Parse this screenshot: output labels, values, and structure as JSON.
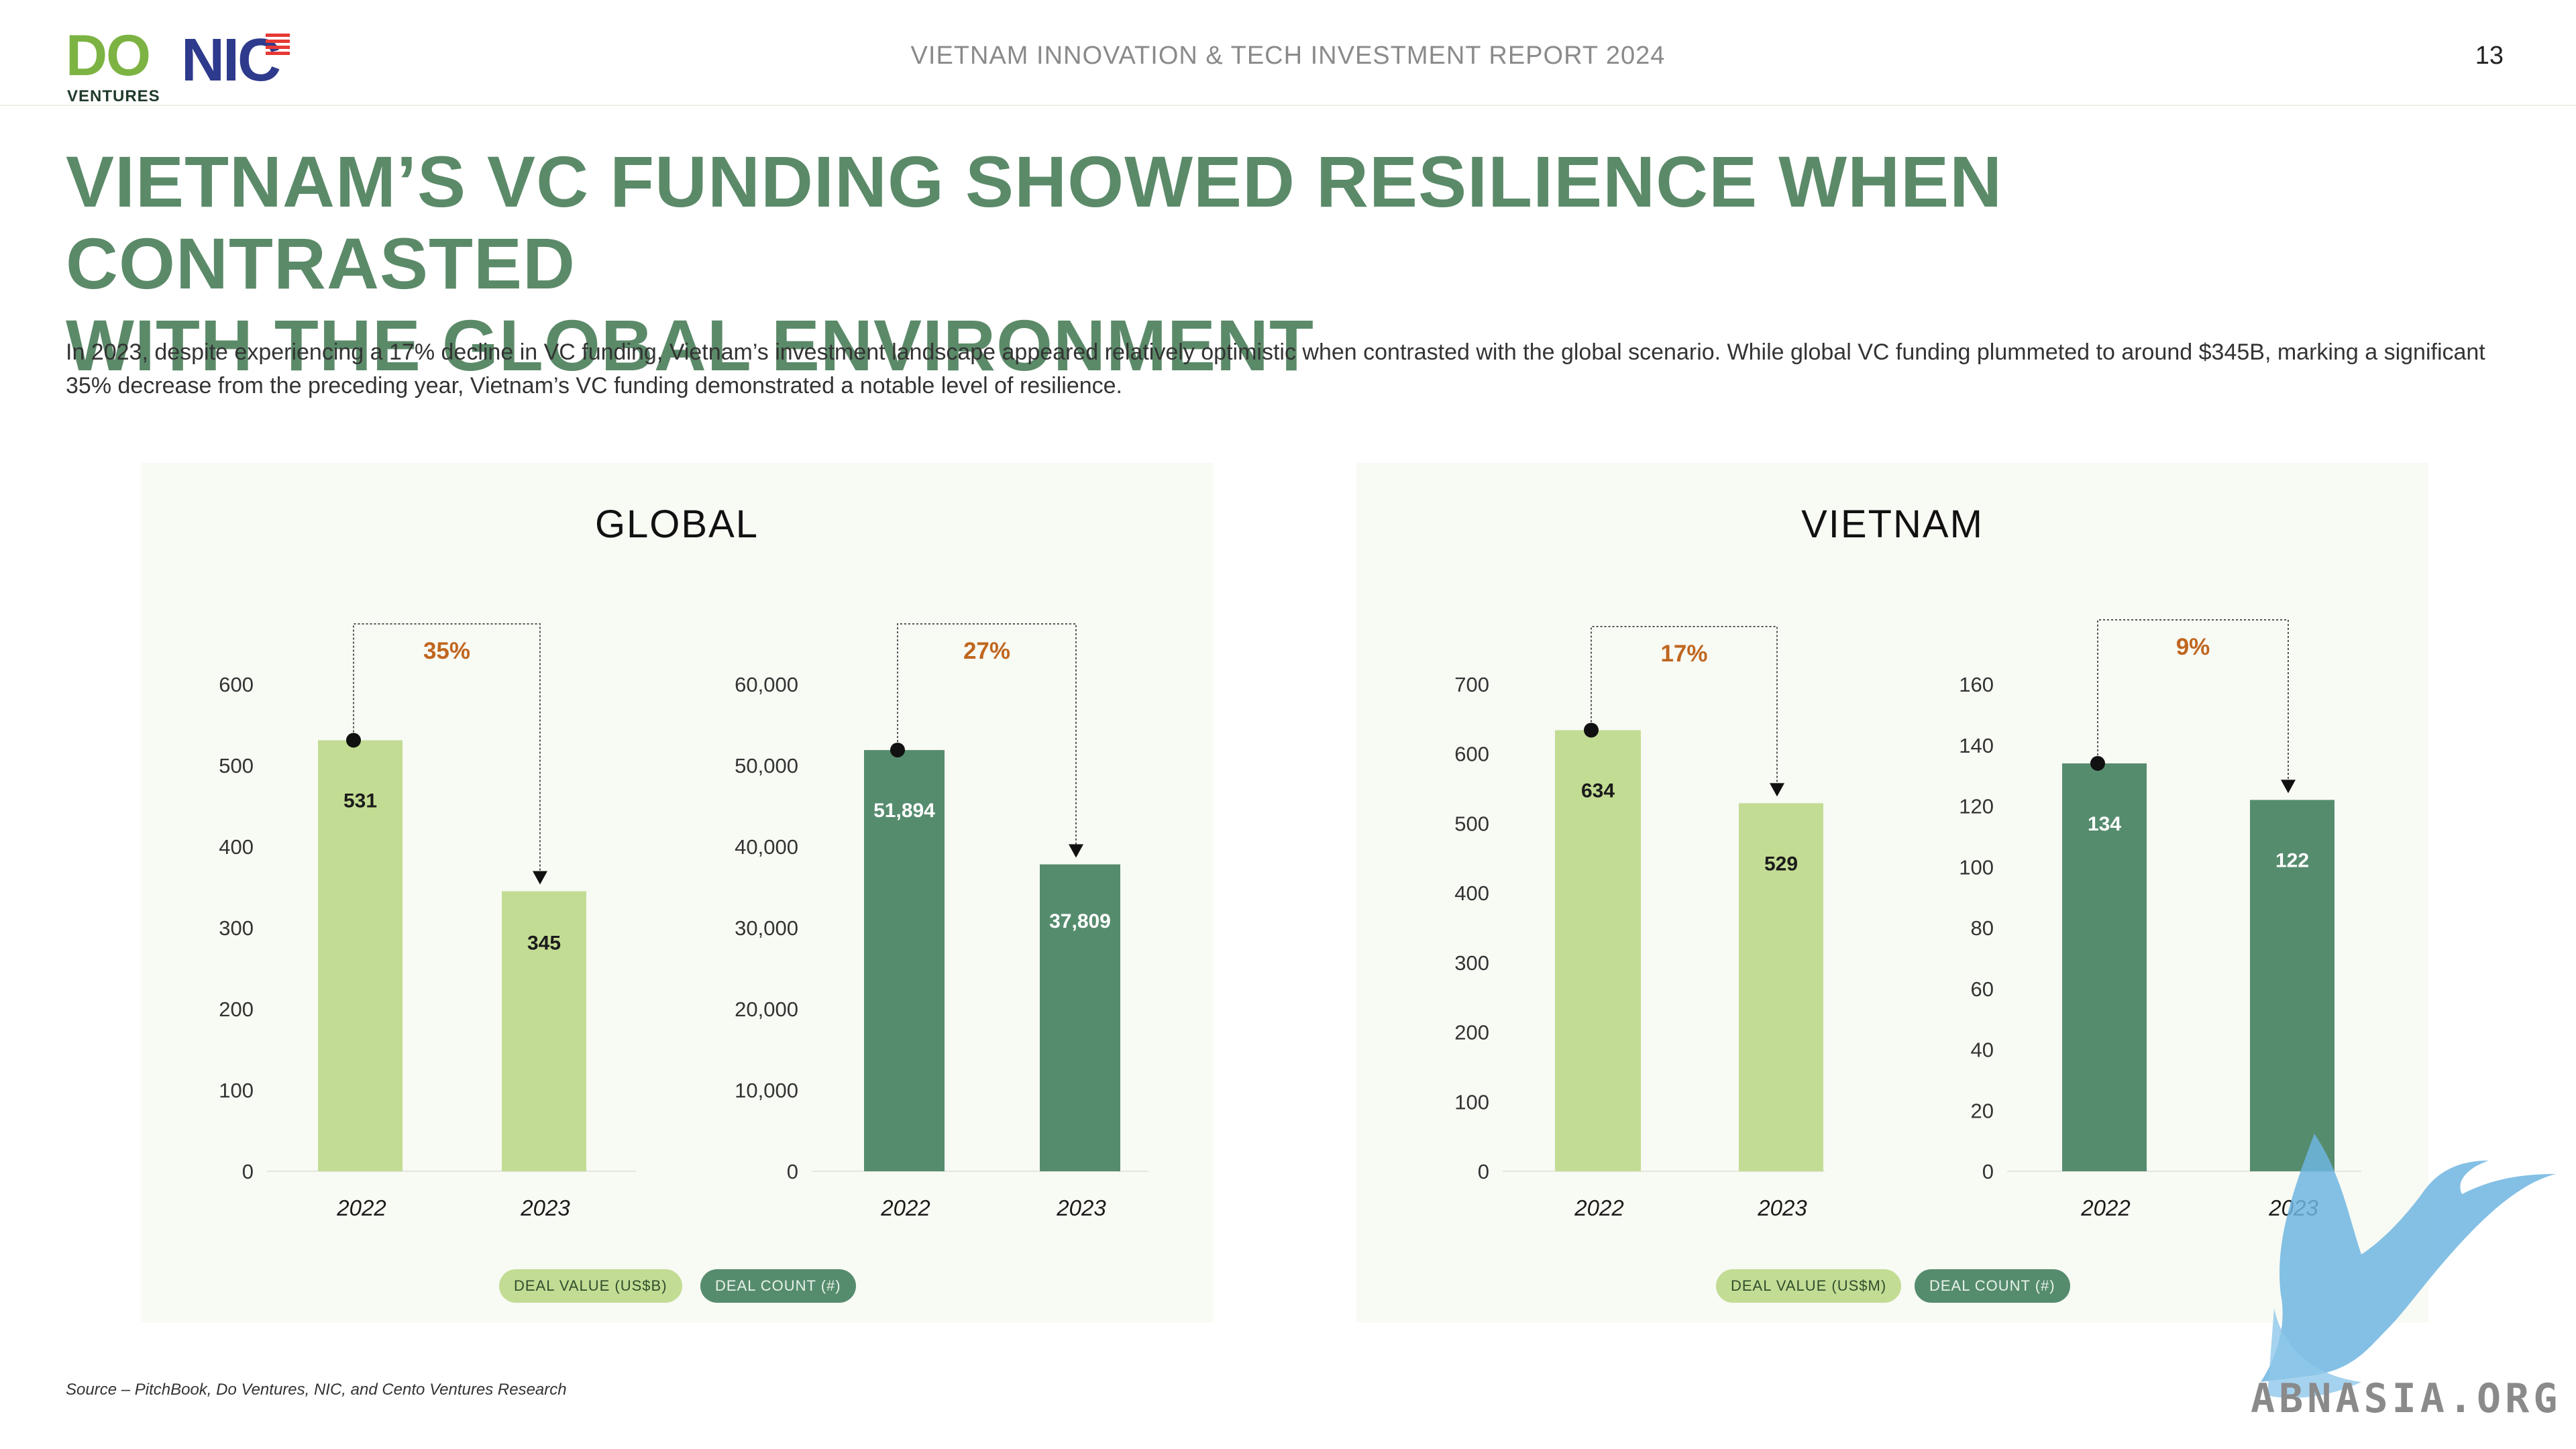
{
  "header": {
    "logo_do": "DO",
    "logo_do_sub": "VENTURES",
    "logo_nic": "NIC",
    "report_title": "VIETNAM INNOVATION & TECH INVESTMENT REPORT 2024",
    "page_number": "13"
  },
  "headline": {
    "line1": "VIETNAM’S VC FUNDING SHOWED RESILIENCE WHEN CONTRASTED",
    "line2": "WITH THE GLOBAL ENVIRONMENT"
  },
  "intro": "In 2023, despite experiencing a 17% decline in VC funding, Vietnam’s investment landscape appeared relatively optimistic when contrasted with the global scenario. While global VC funding plummeted to around $345B, marking a significant 35% decrease from the preceding year, Vietnam’s VC funding demonstrated a notable level of resilience.",
  "panels": {
    "global": {
      "title": "GLOBAL",
      "legend": {
        "value": "DEAL VALUE (US$B)",
        "count": "DEAL COUNT (#)"
      }
    },
    "vietnam": {
      "title": "VIETNAM",
      "legend": {
        "value": "DEAL VALUE (US$M)",
        "count": "DEAL COUNT (#)"
      }
    }
  },
  "colors": {
    "value_bar": "#c3dc94",
    "count_bar": "#568c6e",
    "change_label": "#c0661f",
    "headline": "#5b8a69"
  },
  "chart_data": [
    {
      "id": "global-deal-value",
      "panel": "global",
      "type": "bar",
      "categories": [
        "2022",
        "2023"
      ],
      "values": [
        531,
        345
      ],
      "data_labels": [
        "531",
        "345"
      ],
      "yticks": [
        "0",
        "100",
        "200",
        "300",
        "400",
        "500",
        "600"
      ],
      "ylim": [
        0,
        600
      ],
      "change_label": "35%",
      "series_color": "value",
      "grid": false
    },
    {
      "id": "global-deal-count",
      "panel": "global",
      "type": "bar",
      "categories": [
        "2022",
        "2023"
      ],
      "values": [
        51894,
        37809
      ],
      "data_labels": [
        "51,894",
        "37,809"
      ],
      "yticks": [
        "0",
        "10,000",
        "20,000",
        "30,000",
        "40,000",
        "50,000",
        "60,000"
      ],
      "ylim": [
        0,
        60000
      ],
      "change_label": "27%",
      "series_color": "count",
      "grid": false
    },
    {
      "id": "vietnam-deal-value",
      "panel": "vietnam",
      "type": "bar",
      "categories": [
        "2022",
        "2023"
      ],
      "values": [
        634,
        529
      ],
      "data_labels": [
        "634",
        "529"
      ],
      "yticks": [
        "0",
        "100",
        "200",
        "300",
        "400",
        "500",
        "600",
        "700"
      ],
      "ylim": [
        0,
        700
      ],
      "change_label": "17%",
      "series_color": "value",
      "grid": false
    },
    {
      "id": "vietnam-deal-count",
      "panel": "vietnam",
      "type": "bar",
      "categories": [
        "2022",
        "2023"
      ],
      "values": [
        134,
        122
      ],
      "data_labels": [
        "134",
        "122"
      ],
      "yticks": [
        "0",
        "20",
        "40",
        "60",
        "80",
        "100",
        "120",
        "140",
        "160"
      ],
      "ylim": [
        0,
        160
      ],
      "change_label": "9%",
      "series_color": "count",
      "grid": false
    }
  ],
  "source": "Source – PitchBook, Do Ventures, NIC, and Cento Ventures Research",
  "watermark": {
    "text": "ABNASIA.ORG"
  }
}
